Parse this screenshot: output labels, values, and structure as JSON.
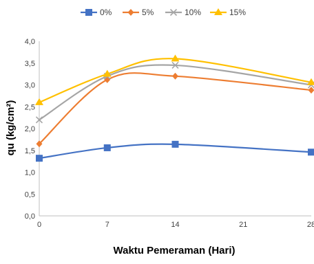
{
  "chart_data": {
    "type": "line",
    "xlabel": "Waktu Pemeraman (Hari)",
    "ylabel": "qu (kg/cm²)",
    "x": [
      0,
      7,
      14,
      28
    ],
    "x_ticks": [
      "0",
      "7",
      "14",
      "21",
      "28"
    ],
    "x_tick_values": [
      0,
      7,
      14,
      21,
      28
    ],
    "y_ticks": [
      "0,0",
      "0,5",
      "1,0",
      "1,5",
      "2,0",
      "2,5",
      "3,0",
      "3,5",
      "4,0"
    ],
    "y_tick_values": [
      0,
      0.5,
      1.0,
      1.5,
      2.0,
      2.5,
      3.0,
      3.5,
      4.0
    ],
    "xlim": [
      0,
      28
    ],
    "ylim": [
      0,
      4
    ],
    "grid": false,
    "smooth": true,
    "legend_position": "top",
    "series": [
      {
        "name": "0%",
        "values": [
          1.32,
          1.56,
          1.64,
          1.46
        ],
        "color": "#4472C4",
        "marker": "square"
      },
      {
        "name": "5%",
        "values": [
          1.65,
          3.12,
          3.2,
          2.88
        ],
        "color": "#ED7D31",
        "marker": "diamond"
      },
      {
        "name": "10%",
        "values": [
          2.2,
          3.2,
          3.45,
          3.0
        ],
        "color": "#A5A5A5",
        "marker": "x"
      },
      {
        "name": "15%",
        "values": [
          2.6,
          3.25,
          3.6,
          3.06
        ],
        "color": "#FFC000",
        "marker": "triangle"
      }
    ]
  }
}
